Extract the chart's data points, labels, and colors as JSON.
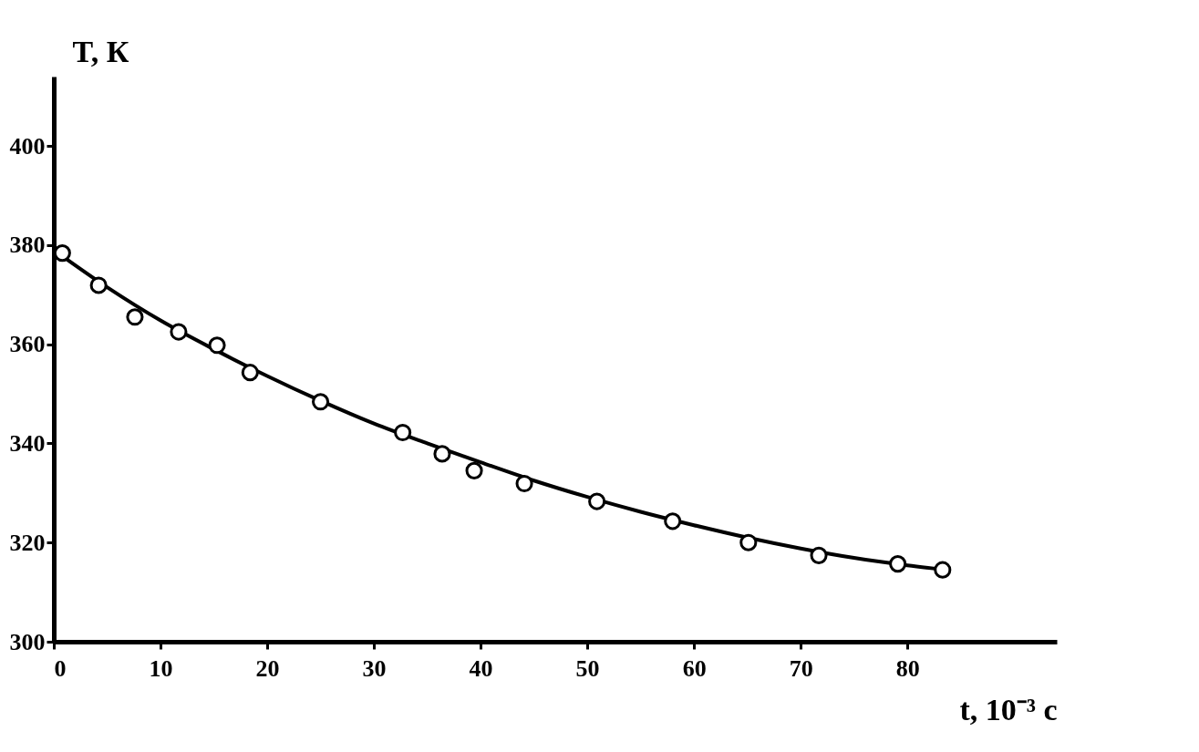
{
  "chart_data": {
    "type": "scatter",
    "xlabel": "t, 10⁻³ с",
    "ylabel": "T, К",
    "xlim": [
      0,
      94
    ],
    "ylim": [
      300,
      414
    ],
    "xticks": [
      0,
      10,
      20,
      30,
      40,
      50,
      60,
      70,
      80
    ],
    "yticks": [
      300,
      320,
      340,
      360,
      380,
      400
    ],
    "grid": false,
    "series": [
      {
        "type": "line",
        "color": "#000000",
        "marker": "none",
        "x": [
          0,
          5,
          10,
          15,
          20,
          25,
          30,
          35,
          40,
          45,
          50,
          55,
          60,
          65,
          70,
          75,
          80,
          84
        ],
        "values": [
          379,
          371.5,
          364.8,
          359,
          353.6,
          348.6,
          344,
          340,
          336.2,
          332.5,
          329.2,
          326.2,
          323.5,
          321,
          318.8,
          316.9,
          315.4,
          314.4
        ]
      },
      {
        "color": "#000000",
        "marker": "circle",
        "x": [
          0.8,
          4.2,
          7.6,
          11.7,
          15.3,
          18.4,
          25.0,
          32.7,
          36.4,
          39.4,
          44.1,
          50.9,
          58.0,
          65.1,
          71.7,
          79.1,
          83.3
        ],
        "values": [
          378.4,
          371.9,
          365.5,
          362.5,
          359.8,
          354.3,
          348.4,
          342.2,
          337.9,
          334.5,
          331.9,
          328.3,
          324.3,
          320.0,
          317.4,
          315.7,
          314.5
        ]
      }
    ]
  }
}
